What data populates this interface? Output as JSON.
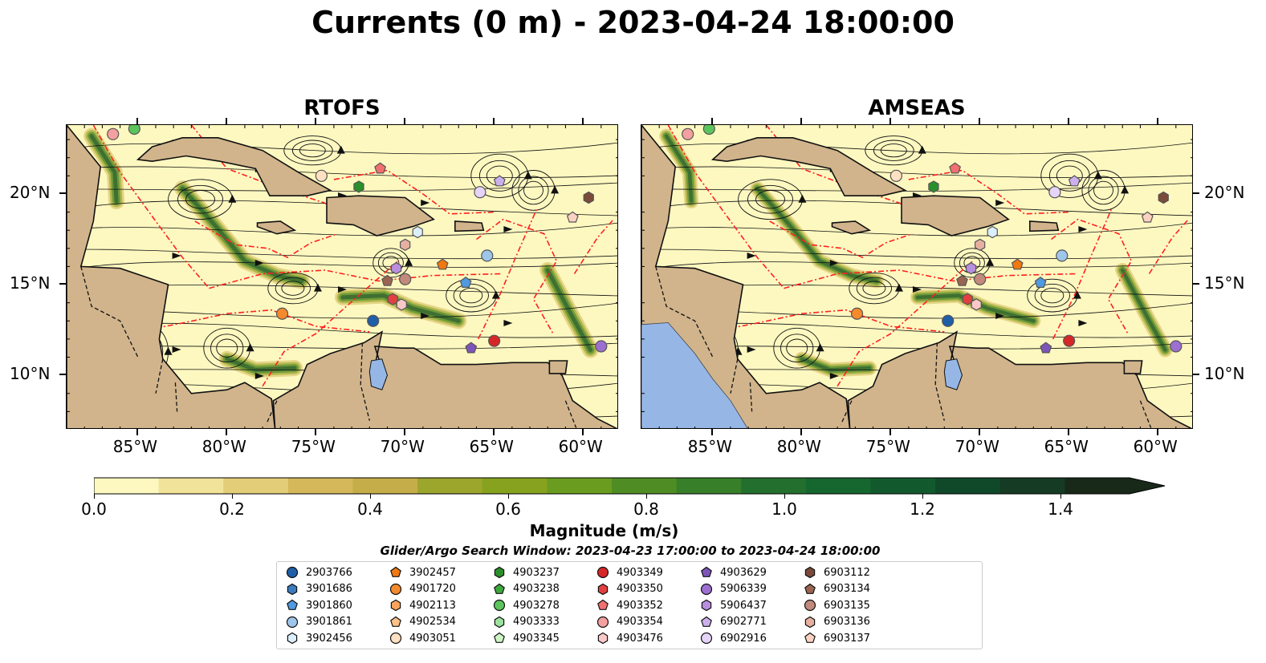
{
  "title": "Currents (0 m) - 2023-04-24 18:00:00",
  "panels": [
    {
      "id": "rtofs",
      "title": "RTOFS"
    },
    {
      "id": "amseas",
      "title": "AMSEAS"
    }
  ],
  "map_extent": {
    "lon": [
      -89.0,
      -58.0
    ],
    "lat": [
      7.0,
      23.8
    ]
  },
  "axes": {
    "lat_ticks": [
      {
        "value": 20,
        "label": "20°N"
      },
      {
        "value": 15,
        "label": "15°N"
      },
      {
        "value": 10,
        "label": "10°N"
      }
    ],
    "lon_ticks": [
      {
        "value": -85,
        "label": "85°W"
      },
      {
        "value": -80,
        "label": "80°W"
      },
      {
        "value": -75,
        "label": "75°W"
      },
      {
        "value": -70,
        "label": "70°W"
      },
      {
        "value": -65,
        "label": "65°W"
      },
      {
        "value": -60,
        "label": "60°W"
      }
    ]
  },
  "colorbar": {
    "label": "Magnitude (m/s)",
    "range": [
      0.0,
      1.5
    ],
    "extend": "max",
    "tick_labels": [
      "0.0",
      "0.2",
      "0.4",
      "0.6",
      "0.8",
      "1.0",
      "1.2",
      "1.4"
    ],
    "tick_values": [
      0.0,
      0.2,
      0.4,
      0.6,
      0.8,
      1.0,
      1.2,
      1.4
    ],
    "colors": [
      "#fdf8c0",
      "#f1e39a",
      "#e3cd78",
      "#d4b85a",
      "#c5ad4a",
      "#9ca52c",
      "#86a21f",
      "#6a9c20",
      "#4f8d24",
      "#377f28",
      "#236f2d",
      "#166630",
      "#125a2e",
      "#10492a",
      "#163b25",
      "#18291a"
    ]
  },
  "search_window": "Glider/Argo Search Window: 2023-04-23 17:00:00 to 2023-04-24 18:00:00",
  "colors": {
    "land": "#d1b48c",
    "lake": "#96b7e6",
    "eez": "#ff2020",
    "ocean_low": "#fdf8c0",
    "ocean_high": "#1a3d1a"
  },
  "legend": [
    {
      "id": "2903766",
      "marker": "circle",
      "color": "#1f5fa8"
    },
    {
      "id": "3901686",
      "marker": "hexagon",
      "color": "#3a7cc0"
    },
    {
      "id": "3901860",
      "marker": "pentagon",
      "color": "#4f9ae0"
    },
    {
      "id": "3901861",
      "marker": "circle",
      "color": "#9ec6ea"
    },
    {
      "id": "3902456",
      "marker": "hexagon",
      "color": "#dbeefb"
    },
    {
      "id": "3902457",
      "marker": "pentagon",
      "color": "#f07810"
    },
    {
      "id": "4901720",
      "marker": "circle",
      "color": "#f58a2c"
    },
    {
      "id": "4902113",
      "marker": "hexagon",
      "color": "#fba35a"
    },
    {
      "id": "4902534",
      "marker": "pentagon",
      "color": "#fcc288"
    },
    {
      "id": "4903051",
      "marker": "circle",
      "color": "#fee0c2"
    },
    {
      "id": "4903237",
      "marker": "hexagon",
      "color": "#2a8f2a"
    },
    {
      "id": "4903238",
      "marker": "pentagon",
      "color": "#3ca83c"
    },
    {
      "id": "4903278",
      "marker": "circle",
      "color": "#5cc45c"
    },
    {
      "id": "4903333",
      "marker": "hexagon",
      "color": "#9ee09e"
    },
    {
      "id": "4903345",
      "marker": "pentagon",
      "color": "#cdf5c4"
    },
    {
      "id": "4903349",
      "marker": "circle",
      "color": "#d62728"
    },
    {
      "id": "4903350",
      "marker": "hexagon",
      "color": "#e24040"
    },
    {
      "id": "4903352",
      "marker": "pentagon",
      "color": "#f07070"
    },
    {
      "id": "4903354",
      "marker": "circle",
      "color": "#f4a0a0"
    },
    {
      "id": "4903476",
      "marker": "hexagon",
      "color": "#fbc8c8"
    },
    {
      "id": "4903629",
      "marker": "pentagon",
      "color": "#7d55b8"
    },
    {
      "id": "5906339",
      "marker": "circle",
      "color": "#9c6fd0"
    },
    {
      "id": "5906437",
      "marker": "hexagon",
      "color": "#b88ee0"
    },
    {
      "id": "6902771",
      "marker": "pentagon",
      "color": "#ccb0ec"
    },
    {
      "id": "6902916",
      "marker": "circle",
      "color": "#e6d4f8"
    },
    {
      "id": "6903112",
      "marker": "hexagon",
      "color": "#7a4a3a"
    },
    {
      "id": "6903134",
      "marker": "pentagon",
      "color": "#9a6452"
    },
    {
      "id": "6903135",
      "marker": "circle",
      "color": "#c28a7c"
    },
    {
      "id": "6903136",
      "marker": "hexagon",
      "color": "#e6b0a0"
    },
    {
      "id": "6903137",
      "marker": "pentagon",
      "color": "#fbd2c2"
    }
  ],
  "platform_positions": [
    {
      "id": "2903766",
      "lon": -71.8,
      "lat": 13.0
    },
    {
      "id": "3901861",
      "lon": -65.4,
      "lat": 16.6
    },
    {
      "id": "3901860",
      "lon": -66.6,
      "lat": 15.1
    },
    {
      "id": "3902456",
      "lon": -69.3,
      "lat": 17.9
    },
    {
      "id": "3902457",
      "lon": -67.9,
      "lat": 16.1
    },
    {
      "id": "4901720",
      "lon": -76.9,
      "lat": 13.4
    },
    {
      "id": "4903237",
      "lon": -72.6,
      "lat": 20.4
    },
    {
      "id": "4903278",
      "lon": -85.2,
      "lat": 23.6
    },
    {
      "id": "4903349",
      "lon": -65.0,
      "lat": 11.9
    },
    {
      "id": "4903350",
      "lon": -70.7,
      "lat": 14.2
    },
    {
      "id": "4903354",
      "lon": -86.4,
      "lat": 23.3
    },
    {
      "id": "4903051",
      "lon": -74.7,
      "lat": 21.0
    },
    {
      "id": "4903476",
      "lon": -70.2,
      "lat": 13.9
    },
    {
      "id": "5906339",
      "lon": -59.0,
      "lat": 11.6
    },
    {
      "id": "5906437",
      "lon": -70.5,
      "lat": 15.9
    },
    {
      "id": "6902771",
      "lon": -64.7,
      "lat": 20.7
    },
    {
      "id": "6902916",
      "lon": -65.8,
      "lat": 20.1
    },
    {
      "id": "6903112",
      "lon": -59.7,
      "lat": 19.8
    },
    {
      "id": "6903134",
      "lon": -71.0,
      "lat": 15.2
    },
    {
      "id": "6903135",
      "lon": -70.0,
      "lat": 15.3
    },
    {
      "id": "6903136",
      "lon": -70.0,
      "lat": 17.2
    },
    {
      "id": "6903137",
      "lon": -60.6,
      "lat": 18.7
    },
    {
      "id": "4903352",
      "lon": -71.4,
      "lat": 21.4
    },
    {
      "id": "4903629",
      "lon": -66.3,
      "lat": 11.5
    }
  ]
}
